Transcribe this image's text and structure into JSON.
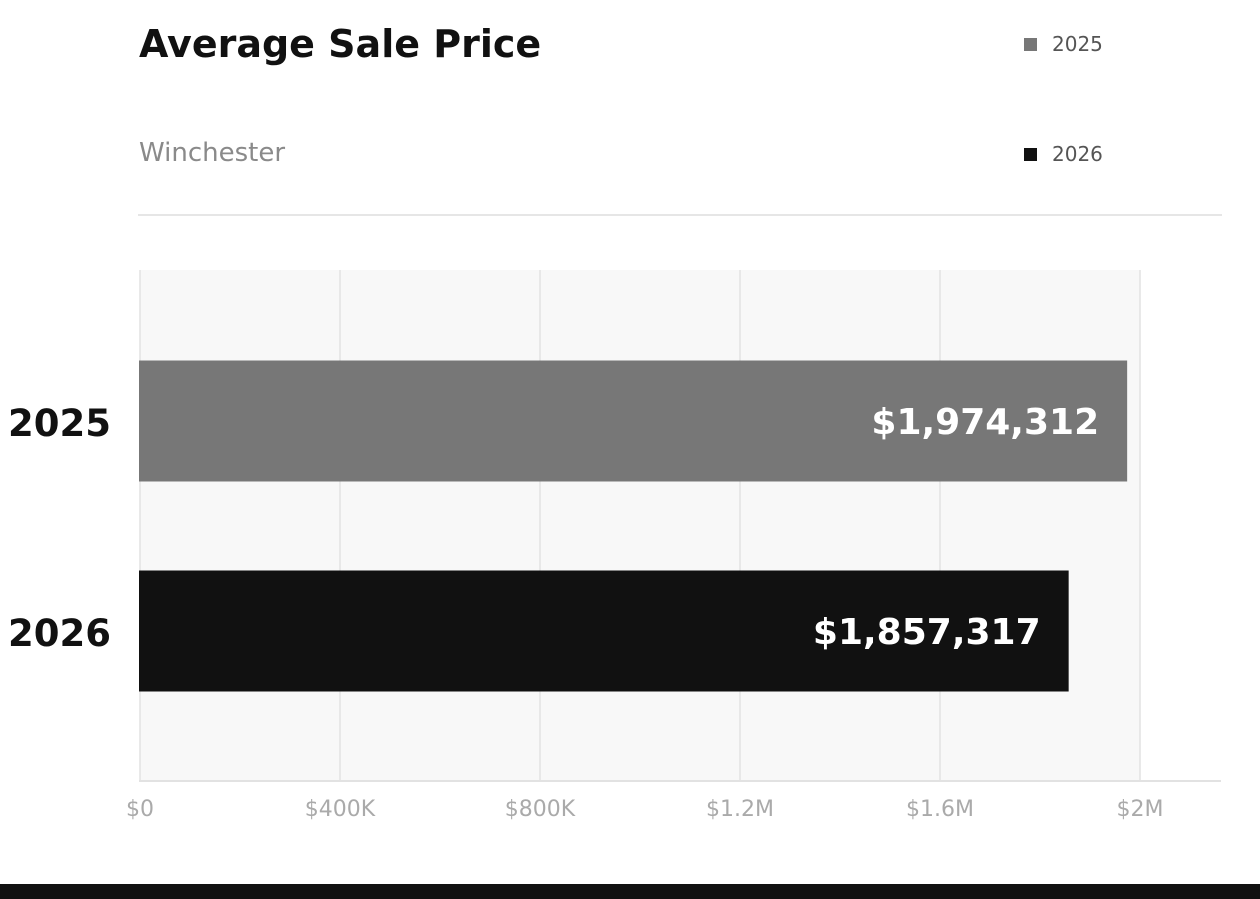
{
  "header": {
    "title": "Average Sale Price",
    "subtitle": "Winchester"
  },
  "legend": [
    {
      "label": "2025",
      "color": "#777777"
    },
    {
      "label": "2026",
      "color": "#111111"
    }
  ],
  "chart_data": {
    "type": "bar",
    "orientation": "horizontal",
    "title": "Average Sale Price",
    "subtitle": "Winchester",
    "categories": [
      "2025",
      "2026"
    ],
    "values": [
      1974312,
      1857317
    ],
    "value_labels": [
      "$1,974,312",
      "$1,857,317"
    ],
    "colors": [
      "#777777",
      "#111111"
    ],
    "xlim": [
      0,
      2000000
    ],
    "xticks": [
      0,
      400000,
      800000,
      1200000,
      1600000,
      2000000
    ],
    "xtick_labels": [
      "$0",
      "$400K",
      "$800K",
      "$1.2M",
      "$1.6M",
      "$2M"
    ],
    "grid": true,
    "legend_position": "top-right"
  }
}
